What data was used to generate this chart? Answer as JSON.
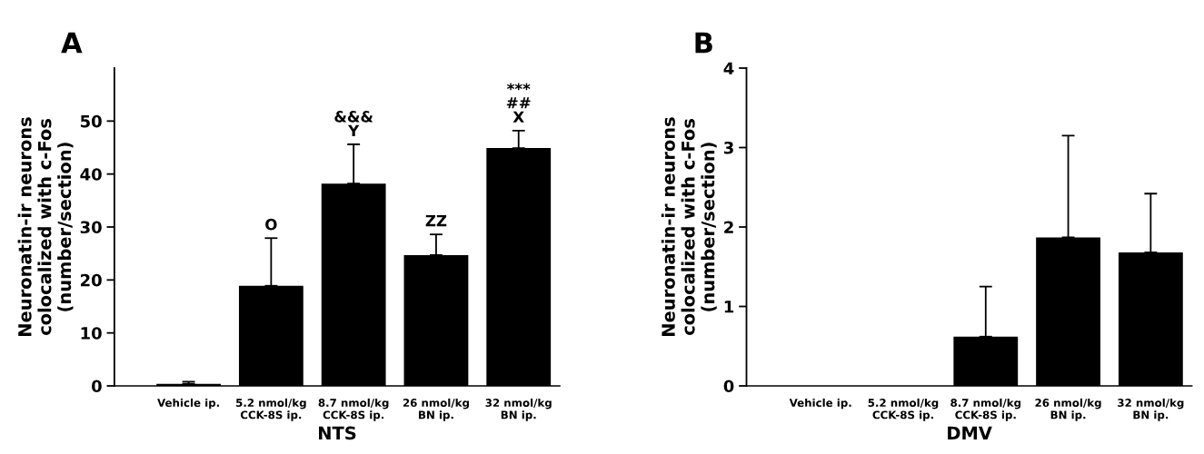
{
  "chart_data": [
    {
      "type": "bar",
      "title": "A",
      "xlabel": "NTS",
      "ylabel": "Neuronatin-ir neurons\ncolocalized with c-Fos\n(number/section)",
      "categories": [
        "Vehicle ip.",
        "5.2 nmol/kg\nCCK-8S ip.",
        "8.7 nmol/kg\nCCK-8S ip.",
        "26 nmol/kg\nBN ip.",
        "32 nmol/kg\nBN ip."
      ],
      "values": [
        0.4,
        18.9,
        38.2,
        24.7,
        44.9
      ],
      "errors": [
        0.4,
        9.0,
        7.4,
        3.9,
        3.3
      ],
      "color": "#000000",
      "ylim": [
        0,
        60
      ],
      "yticks": [
        0,
        10,
        20,
        30,
        40,
        50
      ],
      "grid": false,
      "annotations": [
        {
          "text": "O",
          "x": "5.2 nmol/kg\nCCK-8S ip.",
          "y": 27.9
        },
        {
          "text": "&&&\nY",
          "x": "8.7 nmol/kg\nCCK-8S ip.",
          "y": 45.6
        },
        {
          "text": "ZZ",
          "x": "26 nmol/kg\nBN ip.",
          "y": 28.6
        },
        {
          "text": "***\n##\nX",
          "x": "32 nmol/kg\nBN ip.",
          "y": 48.2
        }
      ]
    },
    {
      "type": "bar",
      "title": "B",
      "xlabel": "DMV",
      "ylabel": "Neuronatin-ir neurons\ncolocalized with c-Fos\n(number/section)",
      "categories": [
        "Vehicle ip.",
        "5.2 nmol/kg\nCCK-8S ip.",
        "8.7 nmol/kg\nCCK-8S ip.",
        "26 nmol/kg\nBN ip.",
        "32 nmol/kg\nBN ip."
      ],
      "values": [
        0,
        0,
        0.62,
        1.87,
        1.68
      ],
      "errors": [
        null,
        null,
        0.63,
        1.28,
        0.74
      ],
      "color": "#000000",
      "ylim": [
        0,
        4
      ],
      "yticks": [
        0,
        1,
        2,
        3,
        4
      ],
      "grid": false
    }
  ]
}
